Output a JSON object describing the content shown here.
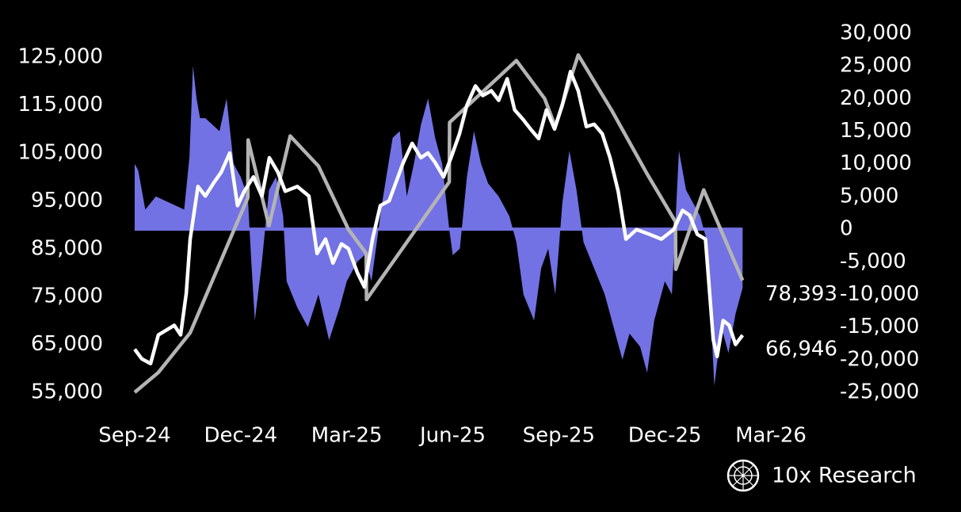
{
  "chart_data": {
    "type": "line",
    "xlim": [
      0,
      18
    ],
    "xticks": [
      {
        "value": 0,
        "label": "Sep-24"
      },
      {
        "value": 3,
        "label": "Dec-24"
      },
      {
        "value": 6,
        "label": "Mar-25"
      },
      {
        "value": 9,
        "label": "Jun-25"
      },
      {
        "value": 12,
        "label": "Sep-25"
      },
      {
        "value": 15,
        "label": "Dec-25"
      },
      {
        "value": 18,
        "label": "Mar-26"
      }
    ],
    "ylim": [
      55000,
      130000
    ],
    "yticks": [
      {
        "value": 55000,
        "label": "55,000"
      },
      {
        "value": 65000,
        "label": "65,000"
      },
      {
        "value": 75000,
        "label": "75,000"
      },
      {
        "value": 85000,
        "label": "85,000"
      },
      {
        "value": 95000,
        "label": "95,000"
      },
      {
        "value": 105000,
        "label": "105,000"
      },
      {
        "value": 115000,
        "label": "115,000"
      },
      {
        "value": 125000,
        "label": "125,000"
      }
    ],
    "y2lim": [
      -25000,
      30000
    ],
    "y2ticks": [
      {
        "value": 30000,
        "label": "30,000"
      },
      {
        "value": 25000,
        "label": "25,000"
      },
      {
        "value": 20000,
        "label": "20,000"
      },
      {
        "value": 15000,
        "label": "15,000"
      },
      {
        "value": 10000,
        "label": "10,000"
      },
      {
        "value": 5000,
        "label": "5,000"
      },
      0,
      {
        "value": -5000,
        "label": "-5,000"
      },
      {
        "value": -10000,
        "label": "-10,000"
      },
      {
        "value": -15000,
        "label": "-15,000"
      },
      {
        "value": -20000,
        "label": "-20,000"
      },
      {
        "value": -25000,
        "label": "-25,000"
      }
    ],
    "series": [
      {
        "type": "area",
        "axis": "y2",
        "color": "#7272e4",
        "x": [
          0,
          0.1,
          0.3,
          0.6,
          1,
          1.4,
          1.55,
          1.65,
          1.75,
          1.85,
          2,
          2.4,
          2.6,
          2.8,
          3,
          3.2,
          3.3,
          3.4,
          3.6,
          3.8,
          4,
          4.2,
          4.3,
          4.6,
          4.9,
          5.2,
          5.5,
          5.8,
          6,
          6.3,
          6.5,
          6.7,
          7,
          7.3,
          7.5,
          7.7,
          7.9,
          8.1,
          8.3,
          8.5,
          8.7,
          8.9,
          9,
          9.2,
          9.4,
          9.6,
          9.8,
          10,
          10.3,
          10.6,
          10.8,
          11,
          11.3,
          11.5,
          11.7,
          11.9,
          12.1,
          12.3,
          12.5,
          12.7,
          13,
          13.3,
          13.5,
          13.8,
          14,
          14.3,
          14.5,
          14.7,
          15,
          15.2,
          15.4,
          15.6,
          15.8,
          16,
          16.2,
          16.4,
          16.6,
          16.8,
          17,
          17.2
        ],
        "values": [
          10000,
          9000,
          3000,
          5000,
          4000,
          3000,
          11000,
          25000,
          20000,
          17000,
          17000,
          15000,
          20000,
          10000,
          8000,
          5000,
          -5000,
          -14000,
          -5000,
          6000,
          8000,
          2000,
          -8000,
          -12000,
          -15000,
          -10000,
          -17000,
          -12000,
          -8000,
          -5000,
          -4000,
          -8000,
          4000,
          14000,
          15000,
          5000,
          10000,
          16000,
          20000,
          14000,
          10000,
          0,
          -4000,
          -3000,
          8000,
          15000,
          10000,
          7000,
          5000,
          2000,
          -2000,
          -10000,
          -14000,
          -6000,
          -3000,
          -10000,
          4000,
          12000,
          6000,
          -2000,
          -6000,
          -10000,
          -14000,
          -20000,
          -16000,
          -18000,
          -22000,
          -14000,
          -8000,
          -10000,
          12000,
          6000,
          4000,
          2000,
          -2000,
          -24000,
          -15000,
          -19000,
          -13000,
          -9000
        ]
      },
      {
        "type": "line",
        "color": "#b4b4b4",
        "x": [
          0,
          0.67,
          1.57,
          2.24,
          2.91,
          3.2,
          3.21,
          3.8,
          4.4,
          5.2,
          6.05,
          6.55,
          6.56,
          8.9,
          8.91,
          10.8,
          11.6,
          11.9,
          12.55,
          13.5,
          14.5,
          15.3,
          15.31,
          16.1,
          17.2
        ],
        "values": [
          55000,
          59150,
          67440,
          79040,
          90650,
          95620,
          107720,
          89820,
          108550,
          102250,
          89000,
          84010,
          74400,
          98940,
          111370,
          124300,
          116350,
          110540,
          125470,
          113860,
          100600,
          90650,
          80700,
          97280,
          78393
        ],
        "value_labels": [
          null,
          null,
          null,
          null,
          null,
          null,
          null,
          null,
          null,
          null,
          null,
          null,
          null,
          null,
          null,
          null,
          null,
          null,
          null,
          null,
          null,
          null,
          null,
          null,
          "78,393"
        ]
      },
      {
        "type": "line",
        "color": "#ffffff",
        "x": [
          0,
          0.2,
          0.45,
          0.67,
          0.9,
          1.12,
          1.3,
          1.46,
          1.57,
          1.79,
          2.0,
          2.24,
          2.45,
          2.69,
          2.91,
          3.1,
          3.36,
          3.6,
          3.81,
          4.05,
          4.26,
          4.6,
          4.93,
          5.16,
          5.4,
          5.61,
          5.85,
          6.05,
          6.3,
          6.5,
          6.73,
          6.95,
          7.2,
          7.4,
          7.6,
          7.85,
          8.1,
          8.3,
          8.5,
          8.74,
          8.95,
          9.19,
          9.4,
          9.64,
          9.85,
          10.09,
          10.3,
          10.54,
          10.75,
          10.99,
          11.2,
          11.43,
          11.65,
          11.88,
          12.1,
          12.33,
          12.55,
          12.78,
          13.0,
          13.23,
          13.45,
          13.68,
          13.9,
          14.2,
          14.57,
          14.9,
          15.25,
          15.5,
          15.7,
          15.92,
          16.15,
          16.37,
          16.48,
          16.65,
          16.82,
          17.0,
          17.2
        ],
        "values": [
          64000,
          62000,
          61000,
          67000,
          68000,
          69000,
          67000,
          75700,
          87000,
          98000,
          96000,
          98800,
          101000,
          105000,
          94000,
          97000,
          100000,
          96000,
          104000,
          101000,
          97000,
          98000,
          96000,
          84000,
          87000,
          82000,
          86000,
          85000,
          80000,
          77000,
          87000,
          94000,
          95000,
          99000,
          103000,
          107000,
          104000,
          105000,
          103000,
          100000,
          104000,
          109000,
          115000,
          119000,
          117000,
          118000,
          116000,
          120500,
          114000,
          112000,
          110000,
          108000,
          114000,
          110000,
          115000,
          122000,
          118000,
          110500,
          111000,
          109000,
          104000,
          97000,
          87000,
          89000,
          88000,
          87000,
          89000,
          93000,
          92000,
          88000,
          87000,
          66000,
          62500,
          70000,
          69000,
          65000,
          66946
        ],
        "value_labels": [
          null,
          null,
          null,
          null,
          null,
          null,
          null,
          null,
          null,
          null,
          null,
          null,
          null,
          null,
          null,
          null,
          null,
          null,
          null,
          null,
          null,
          null,
          null,
          null,
          null,
          null,
          null,
          null,
          null,
          null,
          null,
          null,
          null,
          null,
          null,
          null,
          null,
          null,
          null,
          null,
          null,
          null,
          null,
          null,
          null,
          null,
          null,
          null,
          null,
          null,
          null,
          null,
          null,
          null,
          null,
          null,
          null,
          null,
          null,
          null,
          null,
          null,
          null,
          null,
          null,
          null,
          null,
          null,
          null,
          null,
          null,
          null,
          null,
          null,
          null,
          null,
          "66,946"
        ]
      }
    ]
  },
  "brand": "10x Research"
}
